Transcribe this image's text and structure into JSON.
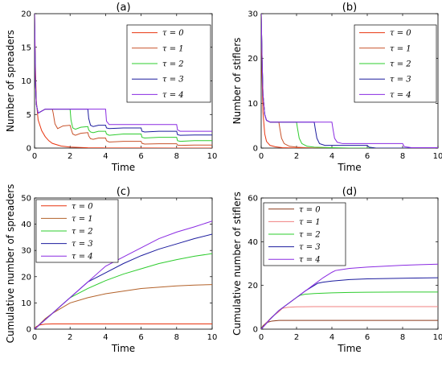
{
  "chart_data": [
    {
      "type": "line",
      "panel": "(a)",
      "title": "(a)",
      "xlabel": "Time",
      "ylabel": "Number of spreaders",
      "xlim": [
        0,
        10
      ],
      "ylim": [
        0,
        20
      ],
      "xticks": [
        0,
        2,
        4,
        6,
        8,
        10
      ],
      "yticks": [
        0,
        5,
        10,
        15,
        20
      ],
      "grid": false,
      "legend_position": "top-right",
      "series": [
        {
          "name": "τ = 0",
          "color": "#e8340f",
          "x": [
            0,
            0.05,
            0.1,
            0.2,
            0.4,
            0.6,
            0.8,
            1.0,
            1.5,
            2.0,
            3.0,
            4.0,
            6.0,
            8.0,
            10.0
          ],
          "y": [
            20,
            12,
            7,
            4.2,
            2.6,
            1.7,
            1.1,
            0.7,
            0.3,
            0.15,
            0.05,
            0.02,
            0.01,
            0.0,
            0.0
          ]
        },
        {
          "name": "τ = 1",
          "color": "#c8522a",
          "x": [
            0,
            0.05,
            0.1,
            0.2,
            0.4,
            0.6,
            0.8,
            1.0,
            1.05,
            1.15,
            1.3,
            1.6,
            2.0,
            2.05,
            2.15,
            2.3,
            2.6,
            3.0,
            3.05,
            3.15,
            3.3,
            3.6,
            4.0,
            4.05,
            4.2,
            5.0,
            6.0,
            6.05,
            6.2,
            7.0,
            8.0,
            8.05,
            8.2,
            9.0,
            10.0
          ],
          "y": [
            20,
            10,
            6.5,
            5.2,
            5.5,
            5.8,
            5.8,
            5.8,
            5.2,
            3.6,
            2.9,
            3.3,
            3.4,
            2.9,
            2.1,
            1.9,
            2.2,
            2.3,
            1.8,
            1.4,
            1.3,
            1.5,
            1.5,
            1.1,
            0.9,
            1.0,
            1.0,
            0.7,
            0.6,
            0.65,
            0.65,
            0.45,
            0.4,
            0.45,
            0.45
          ]
        },
        {
          "name": "τ = 2",
          "color": "#2ecc2e",
          "x": [
            0,
            0.05,
            0.1,
            0.2,
            0.4,
            0.6,
            1.0,
            1.5,
            2.0,
            2.05,
            2.15,
            2.3,
            2.6,
            3.0,
            3.05,
            3.15,
            3.3,
            3.6,
            4.0,
            4.05,
            4.2,
            5.0,
            6.0,
            6.05,
            6.2,
            7.0,
            8.0,
            8.05,
            8.2,
            9.0,
            10.0
          ],
          "y": [
            20,
            10,
            6.5,
            5.2,
            5.5,
            5.8,
            5.8,
            5.8,
            5.8,
            4.2,
            3.0,
            2.8,
            3.1,
            3.2,
            2.7,
            2.4,
            2.3,
            2.5,
            2.5,
            2.1,
            1.9,
            2.1,
            2.1,
            1.6,
            1.5,
            1.6,
            1.6,
            1.1,
            1.0,
            1.1,
            1.1
          ]
        },
        {
          "name": "τ = 3",
          "color": "#1c1c9e",
          "x": [
            0,
            0.05,
            0.1,
            0.2,
            0.4,
            0.6,
            1.0,
            2.0,
            3.0,
            3.05,
            3.15,
            3.3,
            3.6,
            4.0,
            4.05,
            4.2,
            5.0,
            6.0,
            6.05,
            6.2,
            7.0,
            8.0,
            8.05,
            8.2,
            9.0,
            10.0
          ],
          "y": [
            20,
            10,
            6.5,
            5.2,
            5.5,
            5.8,
            5.8,
            5.8,
            5.8,
            4.4,
            3.4,
            3.2,
            3.4,
            3.4,
            3.0,
            2.9,
            3.0,
            3.0,
            2.5,
            2.4,
            2.5,
            2.5,
            2.0,
            1.9,
            1.95,
            1.95
          ]
        },
        {
          "name": "τ = 4",
          "color": "#8a2be2",
          "x": [
            0,
            0.05,
            0.1,
            0.2,
            0.4,
            0.6,
            1.0,
            2.0,
            3.0,
            4.0,
            4.05,
            4.2,
            5.0,
            6.0,
            8.0,
            8.05,
            8.2,
            9.0,
            10.0
          ],
          "y": [
            20,
            10,
            6.5,
            5.2,
            5.5,
            5.8,
            5.8,
            5.8,
            5.8,
            5.8,
            4.0,
            3.5,
            3.5,
            3.5,
            3.5,
            2.7,
            2.5,
            2.5,
            2.5
          ]
        }
      ]
    },
    {
      "type": "line",
      "panel": "(b)",
      "title": "(b)",
      "xlabel": "Time",
      "ylabel": "Number of stiflers",
      "xlim": [
        0,
        10
      ],
      "ylim": [
        0,
        30
      ],
      "xticks": [
        0,
        2,
        4,
        6,
        8,
        10
      ],
      "yticks": [
        0,
        10,
        20,
        30
      ],
      "grid": false,
      "legend_position": "top-right",
      "series": [
        {
          "name": "τ = 0",
          "color": "#e8340f",
          "x": [
            0,
            0.05,
            0.1,
            0.2,
            0.3,
            0.5,
            0.8,
            1.2,
            2.0,
            10.0
          ],
          "y": [
            30,
            16,
            8,
            3.2,
            1.5,
            0.6,
            0.3,
            0.1,
            0.0,
            0.0
          ]
        },
        {
          "name": "τ = 1",
          "color": "#c8522a",
          "x": [
            0,
            0.05,
            0.1,
            0.2,
            0.3,
            0.5,
            1.0,
            1.05,
            1.15,
            1.3,
            1.6,
            2.0,
            2.5,
            3.0,
            10.0
          ],
          "y": [
            30,
            20,
            12,
            7.5,
            6.2,
            5.8,
            5.8,
            4.5,
            2.2,
            1.0,
            0.4,
            0.2,
            0.1,
            0.0,
            0.0
          ]
        },
        {
          "name": "τ = 2",
          "color": "#2ecc2e",
          "x": [
            0,
            0.05,
            0.1,
            0.2,
            0.3,
            0.5,
            1.0,
            2.0,
            2.05,
            2.15,
            2.3,
            2.6,
            3.0,
            4.0,
            5.0,
            10.0
          ],
          "y": [
            30,
            20,
            12,
            7.5,
            6.2,
            5.8,
            5.8,
            5.8,
            4.5,
            2.2,
            1.0,
            0.4,
            0.2,
            0.1,
            0.0,
            0.0
          ]
        },
        {
          "name": "τ = 3",
          "color": "#1c1c9e",
          "x": [
            0,
            0.05,
            0.1,
            0.2,
            0.3,
            0.5,
            1.0,
            2.0,
            3.0,
            3.05,
            3.15,
            3.3,
            3.6,
            4.0,
            5.0,
            6.0,
            6.1,
            6.5,
            10.0
          ],
          "y": [
            30,
            20,
            12,
            7.5,
            6.2,
            5.8,
            5.8,
            5.8,
            5.8,
            4.5,
            2.2,
            1.0,
            0.6,
            0.6,
            0.6,
            0.6,
            0.2,
            0.0,
            0.0
          ]
        },
        {
          "name": "τ = 4",
          "color": "#8a2be2",
          "x": [
            0,
            0.05,
            0.1,
            0.2,
            0.3,
            0.5,
            1.0,
            2.0,
            3.0,
            4.0,
            4.05,
            4.15,
            4.3,
            4.6,
            5.0,
            6.0,
            7.0,
            8.0,
            8.1,
            8.5,
            10.0
          ],
          "y": [
            30,
            20,
            12,
            7.5,
            6.2,
            5.8,
            5.8,
            5.8,
            5.8,
            5.8,
            4.5,
            2.2,
            1.3,
            1.0,
            1.0,
            1.0,
            1.0,
            1.0,
            0.3,
            0.1,
            0.1
          ]
        }
      ]
    },
    {
      "type": "line",
      "panel": "(c)",
      "title": "(c)",
      "xlabel": "Time",
      "ylabel": "Cumulative number of spreaders",
      "xlim": [
        0,
        10
      ],
      "ylim": [
        0,
        50
      ],
      "xticks": [
        0,
        2,
        4,
        6,
        8,
        10
      ],
      "yticks": [
        0,
        10,
        20,
        30,
        40,
        50
      ],
      "grid": false,
      "legend_position": "top-left",
      "series": [
        {
          "name": "τ = 0",
          "color": "#e8340f",
          "x": [
            0,
            0.1,
            0.3,
            0.6,
            1.0,
            2.0,
            10.0
          ],
          "y": [
            0,
            1.0,
            1.6,
            1.9,
            2.0,
            2.0,
            2.0
          ]
        },
        {
          "name": "τ = 1",
          "color": "#b3622a",
          "x": [
            0,
            0.3,
            0.6,
            1.0,
            1.5,
            2.0,
            3.0,
            4.0,
            5.0,
            6.0,
            7.0,
            8.0,
            9.0,
            10.0
          ],
          "y": [
            0,
            2.0,
            4.0,
            6.0,
            8.0,
            10.0,
            12.0,
            13.5,
            14.5,
            15.5,
            16.0,
            16.5,
            16.8,
            17.0
          ]
        },
        {
          "name": "τ = 2",
          "color": "#2ecc2e",
          "x": [
            0,
            0.5,
            1.0,
            1.5,
            2.0,
            3.0,
            4.0,
            5.0,
            6.0,
            7.0,
            8.0,
            9.0,
            10.0
          ],
          "y": [
            0,
            3.0,
            6.0,
            9.0,
            12.0,
            15.5,
            18.5,
            21.0,
            23.0,
            25.0,
            26.5,
            27.8,
            28.8
          ]
        },
        {
          "name": "τ = 3",
          "color": "#1c1c9e",
          "x": [
            0,
            0.5,
            1.0,
            1.5,
            2.0,
            3.0,
            4.0,
            5.0,
            6.0,
            7.0,
            8.0,
            9.0,
            10.0
          ],
          "y": [
            0,
            3.0,
            6.0,
            9.0,
            12.0,
            18.0,
            21.5,
            25.0,
            28.0,
            30.5,
            32.5,
            34.5,
            36.2
          ]
        },
        {
          "name": "τ = 4",
          "color": "#8a2be2",
          "x": [
            0,
            0.5,
            1.0,
            1.5,
            2.0,
            3.0,
            4.0,
            5.0,
            6.0,
            7.0,
            8.0,
            9.0,
            10.0
          ],
          "y": [
            0,
            3.0,
            6.0,
            9.0,
            12.0,
            18.0,
            24.0,
            27.5,
            31.0,
            34.5,
            37.0,
            39.0,
            41.2
          ]
        }
      ]
    },
    {
      "type": "line",
      "panel": "(d)",
      "title": "(d)",
      "xlabel": "Time",
      "ylabel": "Cumulative number of stiflers",
      "xlim": [
        0,
        10
      ],
      "ylim": [
        0,
        60
      ],
      "xticks": [
        0,
        2,
        4,
        6,
        8,
        10
      ],
      "yticks": [
        0,
        20,
        40,
        60
      ],
      "grid": false,
      "legend_position": "top-left",
      "series": [
        {
          "name": "τ = 0",
          "color": "#8b3a1a",
          "x": [
            0,
            0.1,
            0.3,
            0.6,
            1.0,
            10.0
          ],
          "y": [
            0,
            1.5,
            3.0,
            3.7,
            4.0,
            4.0
          ]
        },
        {
          "name": "τ = 1",
          "color": "#f08080",
          "x": [
            0,
            0.3,
            0.6,
            1.0,
            1.2,
            1.5,
            2.0,
            3.0,
            10.0
          ],
          "y": [
            0,
            3.0,
            5.5,
            8.0,
            9.5,
            10.0,
            10.2,
            10.3,
            10.3
          ]
        },
        {
          "name": "τ = 2",
          "color": "#2ecc2e",
          "x": [
            0,
            0.5,
            1.0,
            1.5,
            2.0,
            2.2,
            2.5,
            3.0,
            4.0,
            5.0,
            6.0,
            8.0,
            10.0
          ],
          "y": [
            0,
            4.5,
            8.5,
            11.5,
            14.5,
            15.5,
            16.0,
            16.3,
            16.6,
            16.8,
            16.9,
            17.0,
            17.0
          ]
        },
        {
          "name": "τ = 3",
          "color": "#1c1c9e",
          "x": [
            0,
            0.5,
            1.0,
            1.5,
            2.0,
            2.5,
            3.0,
            3.2,
            3.5,
            4.0,
            5.0,
            6.0,
            8.0,
            10.0
          ],
          "y": [
            0,
            4.5,
            8.5,
            11.5,
            14.5,
            17.5,
            20.0,
            21.0,
            21.5,
            22.0,
            22.7,
            23.0,
            23.3,
            23.5
          ]
        },
        {
          "name": "τ = 4",
          "color": "#8a2be2",
          "x": [
            0,
            0.5,
            1.0,
            1.5,
            2.0,
            2.5,
            3.0,
            3.5,
            4.0,
            4.2,
            4.5,
            5.0,
            6.0,
            7.0,
            8.0,
            9.0,
            10.0
          ],
          "y": [
            0,
            4.5,
            8.5,
            11.5,
            14.5,
            17.5,
            20.5,
            23.5,
            26.0,
            26.8,
            27.2,
            27.8,
            28.4,
            28.8,
            29.2,
            29.5,
            29.7
          ]
        }
      ]
    }
  ]
}
